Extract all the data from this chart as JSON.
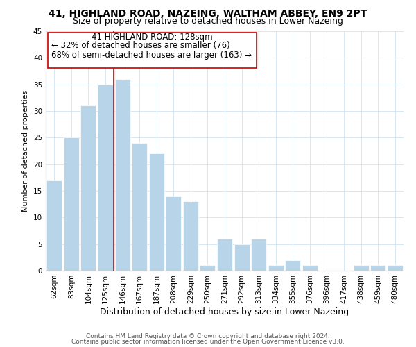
{
  "title": "41, HIGHLAND ROAD, NAZEING, WALTHAM ABBEY, EN9 2PT",
  "subtitle": "Size of property relative to detached houses in Lower Nazeing",
  "xlabel": "Distribution of detached houses by size in Lower Nazeing",
  "ylabel": "Number of detached properties",
  "bar_labels": [
    "62sqm",
    "83sqm",
    "104sqm",
    "125sqm",
    "146sqm",
    "167sqm",
    "187sqm",
    "208sqm",
    "229sqm",
    "250sqm",
    "271sqm",
    "292sqm",
    "313sqm",
    "334sqm",
    "355sqm",
    "376sqm",
    "396sqm",
    "417sqm",
    "438sqm",
    "459sqm",
    "480sqm"
  ],
  "bar_values": [
    17,
    25,
    31,
    35,
    36,
    24,
    22,
    14,
    13,
    1,
    6,
    5,
    6,
    1,
    2,
    1,
    0,
    0,
    1,
    1,
    1
  ],
  "bar_color": "#b8d4e8",
  "bar_edge_color": "#ffffff",
  "reference_line_color": "#cc0000",
  "ylim": [
    0,
    45
  ],
  "yticks": [
    0,
    5,
    10,
    15,
    20,
    25,
    30,
    35,
    40,
    45
  ],
  "annotation_title": "41 HIGHLAND ROAD: 128sqm",
  "annotation_line1": "← 32% of detached houses are smaller (76)",
  "annotation_line2": "68% of semi-detached houses are larger (163) →",
  "footnote1": "Contains HM Land Registry data © Crown copyright and database right 2024.",
  "footnote2": "Contains public sector information licensed under the Open Government Licence v3.0.",
  "title_fontsize": 10,
  "subtitle_fontsize": 9,
  "xlabel_fontsize": 9,
  "ylabel_fontsize": 8,
  "tick_fontsize": 7.5,
  "annotation_fontsize": 8.5,
  "footnote_fontsize": 6.5,
  "grid_color": "#d0e4f0",
  "spine_color": "#aaaaaa"
}
